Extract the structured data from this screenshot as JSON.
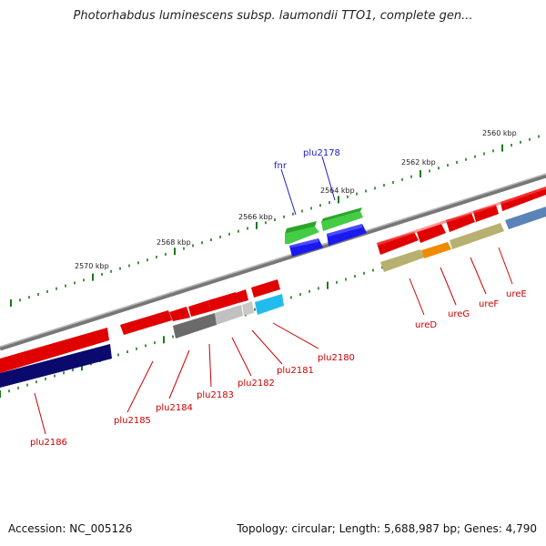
{
  "header": {
    "title": "Photorhabdus luminescens subsp. laumondii TTO1, complete gen..."
  },
  "footer": {
    "accession": "Accession: NC_005126",
    "summary": "Topology: circular; Length: 5,688,987 bp; Genes: 4,790"
  },
  "scale_labels": [
    "2560 kbp",
    "2562 kbp",
    "2564 kbp",
    "2566 kbp",
    "2568 kbp",
    "2570 kbp"
  ],
  "gene_labels": [
    {
      "id": "fnr",
      "text": "fnr",
      "color": "#1a1acc"
    },
    {
      "id": "plu2178",
      "text": "plu2178",
      "color": "#1a1acc"
    },
    {
      "id": "ureE",
      "text": "ureE",
      "color": "#cc0000"
    },
    {
      "id": "ureF",
      "text": "ureF",
      "color": "#cc0000"
    },
    {
      "id": "ureG",
      "text": "ureG",
      "color": "#cc0000"
    },
    {
      "id": "ureD",
      "text": "ureD",
      "color": "#cc0000"
    },
    {
      "id": "plu2180",
      "text": "plu2180",
      "color": "#cc0000"
    },
    {
      "id": "plu2181",
      "text": "plu2181",
      "color": "#cc0000"
    },
    {
      "id": "plu2182",
      "text": "plu2182",
      "color": "#cc0000"
    },
    {
      "id": "plu2183",
      "text": "plu2183",
      "color": "#cc0000"
    },
    {
      "id": "plu2184",
      "text": "plu2184",
      "color": "#cc0000"
    },
    {
      "id": "plu2185",
      "text": "plu2185",
      "color": "#cc0000"
    },
    {
      "id": "plu2186",
      "text": "plu2186",
      "color": "#cc0000"
    }
  ],
  "colors": {
    "cds": "#e00000",
    "gene_upper": "#33bb33",
    "gene_lower": "#1a1aee",
    "ure_olive": "#b8b070",
    "ure_orange": "#f08a00",
    "steel_blue": "#5a84b8",
    "dark_navy": "#0a0a6e",
    "grey_dark": "#6a6a6a",
    "grey_light": "#c0c0c0",
    "cyan": "#22bbee",
    "backbone": "#777777",
    "ticks": "#1a7a1a"
  }
}
